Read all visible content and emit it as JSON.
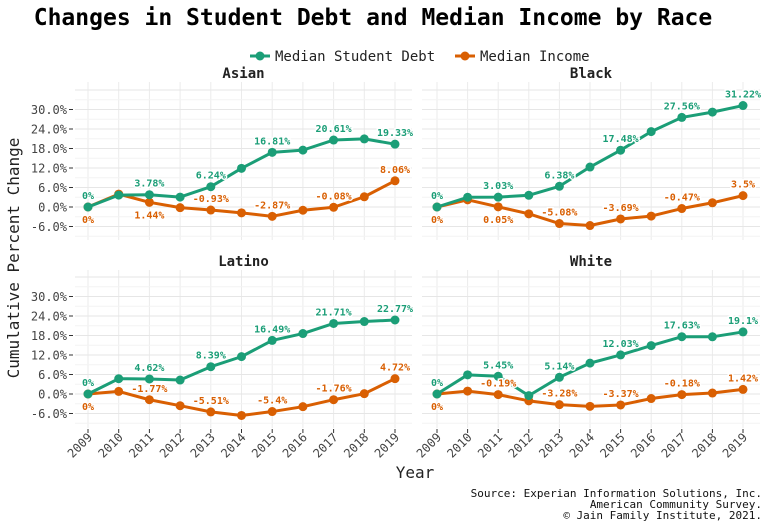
{
  "chart_data": {
    "type": "line",
    "title": "Changes in Student Debt and Median Income by Race",
    "xlabel": "Year",
    "ylabel": "Cumulative Percent Change",
    "x": [
      2009,
      2010,
      2011,
      2012,
      2013,
      2014,
      2015,
      2016,
      2017,
      2018,
      2019
    ],
    "yticks": [
      "-6.0%",
      "0.0%",
      "6.0%",
      "12.0%",
      "18.0%",
      "24.0%",
      "30.0%"
    ],
    "ytick_values": [
      -6,
      0,
      6,
      12,
      18,
      24,
      30
    ],
    "ylim": [
      -10.5,
      38
    ],
    "grid": true,
    "legend_position": "top",
    "colors": {
      "Median Student Debt": "#1b9e77",
      "Median Income": "#d95f02"
    },
    "series_names": [
      "Median Student Debt",
      "Median Income"
    ],
    "panels": [
      {
        "title": "Asian",
        "debt": [
          0,
          3.66,
          3.78,
          3.05,
          6.24,
          11.9,
          16.81,
          17.5,
          20.61,
          20.95,
          19.33
        ],
        "income": [
          0,
          3.97,
          1.44,
          -0.2,
          -0.93,
          -1.8,
          -2.87,
          -1.0,
          -0.08,
          3.15,
          8.06
        ]
      },
      {
        "title": "Black",
        "debt": [
          0,
          3.0,
          3.03,
          3.6,
          6.38,
          12.3,
          17.48,
          23.2,
          27.56,
          29.2,
          31.22
        ],
        "income": [
          0,
          2.2,
          0.05,
          -2.1,
          -5.08,
          -5.7,
          -3.69,
          -2.8,
          -0.47,
          1.3,
          3.5
        ]
      },
      {
        "title": "Latino",
        "debt": [
          0,
          4.7,
          4.62,
          4.3,
          8.39,
          11.5,
          16.49,
          18.6,
          21.71,
          22.3,
          22.77
        ],
        "income": [
          0,
          0.8,
          -1.77,
          -3.6,
          -5.51,
          -6.6,
          -5.4,
          -3.9,
          -1.76,
          0.1,
          4.72
        ]
      },
      {
        "title": "White",
        "debt": [
          0,
          5.9,
          5.45,
          -0.5,
          5.14,
          9.5,
          12.03,
          14.9,
          17.63,
          17.6,
          19.1
        ],
        "income": [
          0,
          0.9,
          -0.19,
          -2.1,
          -3.28,
          -3.8,
          -3.37,
          -1.4,
          -0.18,
          0.3,
          1.42
        ]
      }
    ],
    "labeled_years": [
      2009,
      2011,
      2013,
      2015,
      2017,
      2019
    ],
    "source": [
      "Source: Experian Information Solutions, Inc.",
      "American Community Survey.",
      "© Jain Family Institute, 2021."
    ]
  }
}
